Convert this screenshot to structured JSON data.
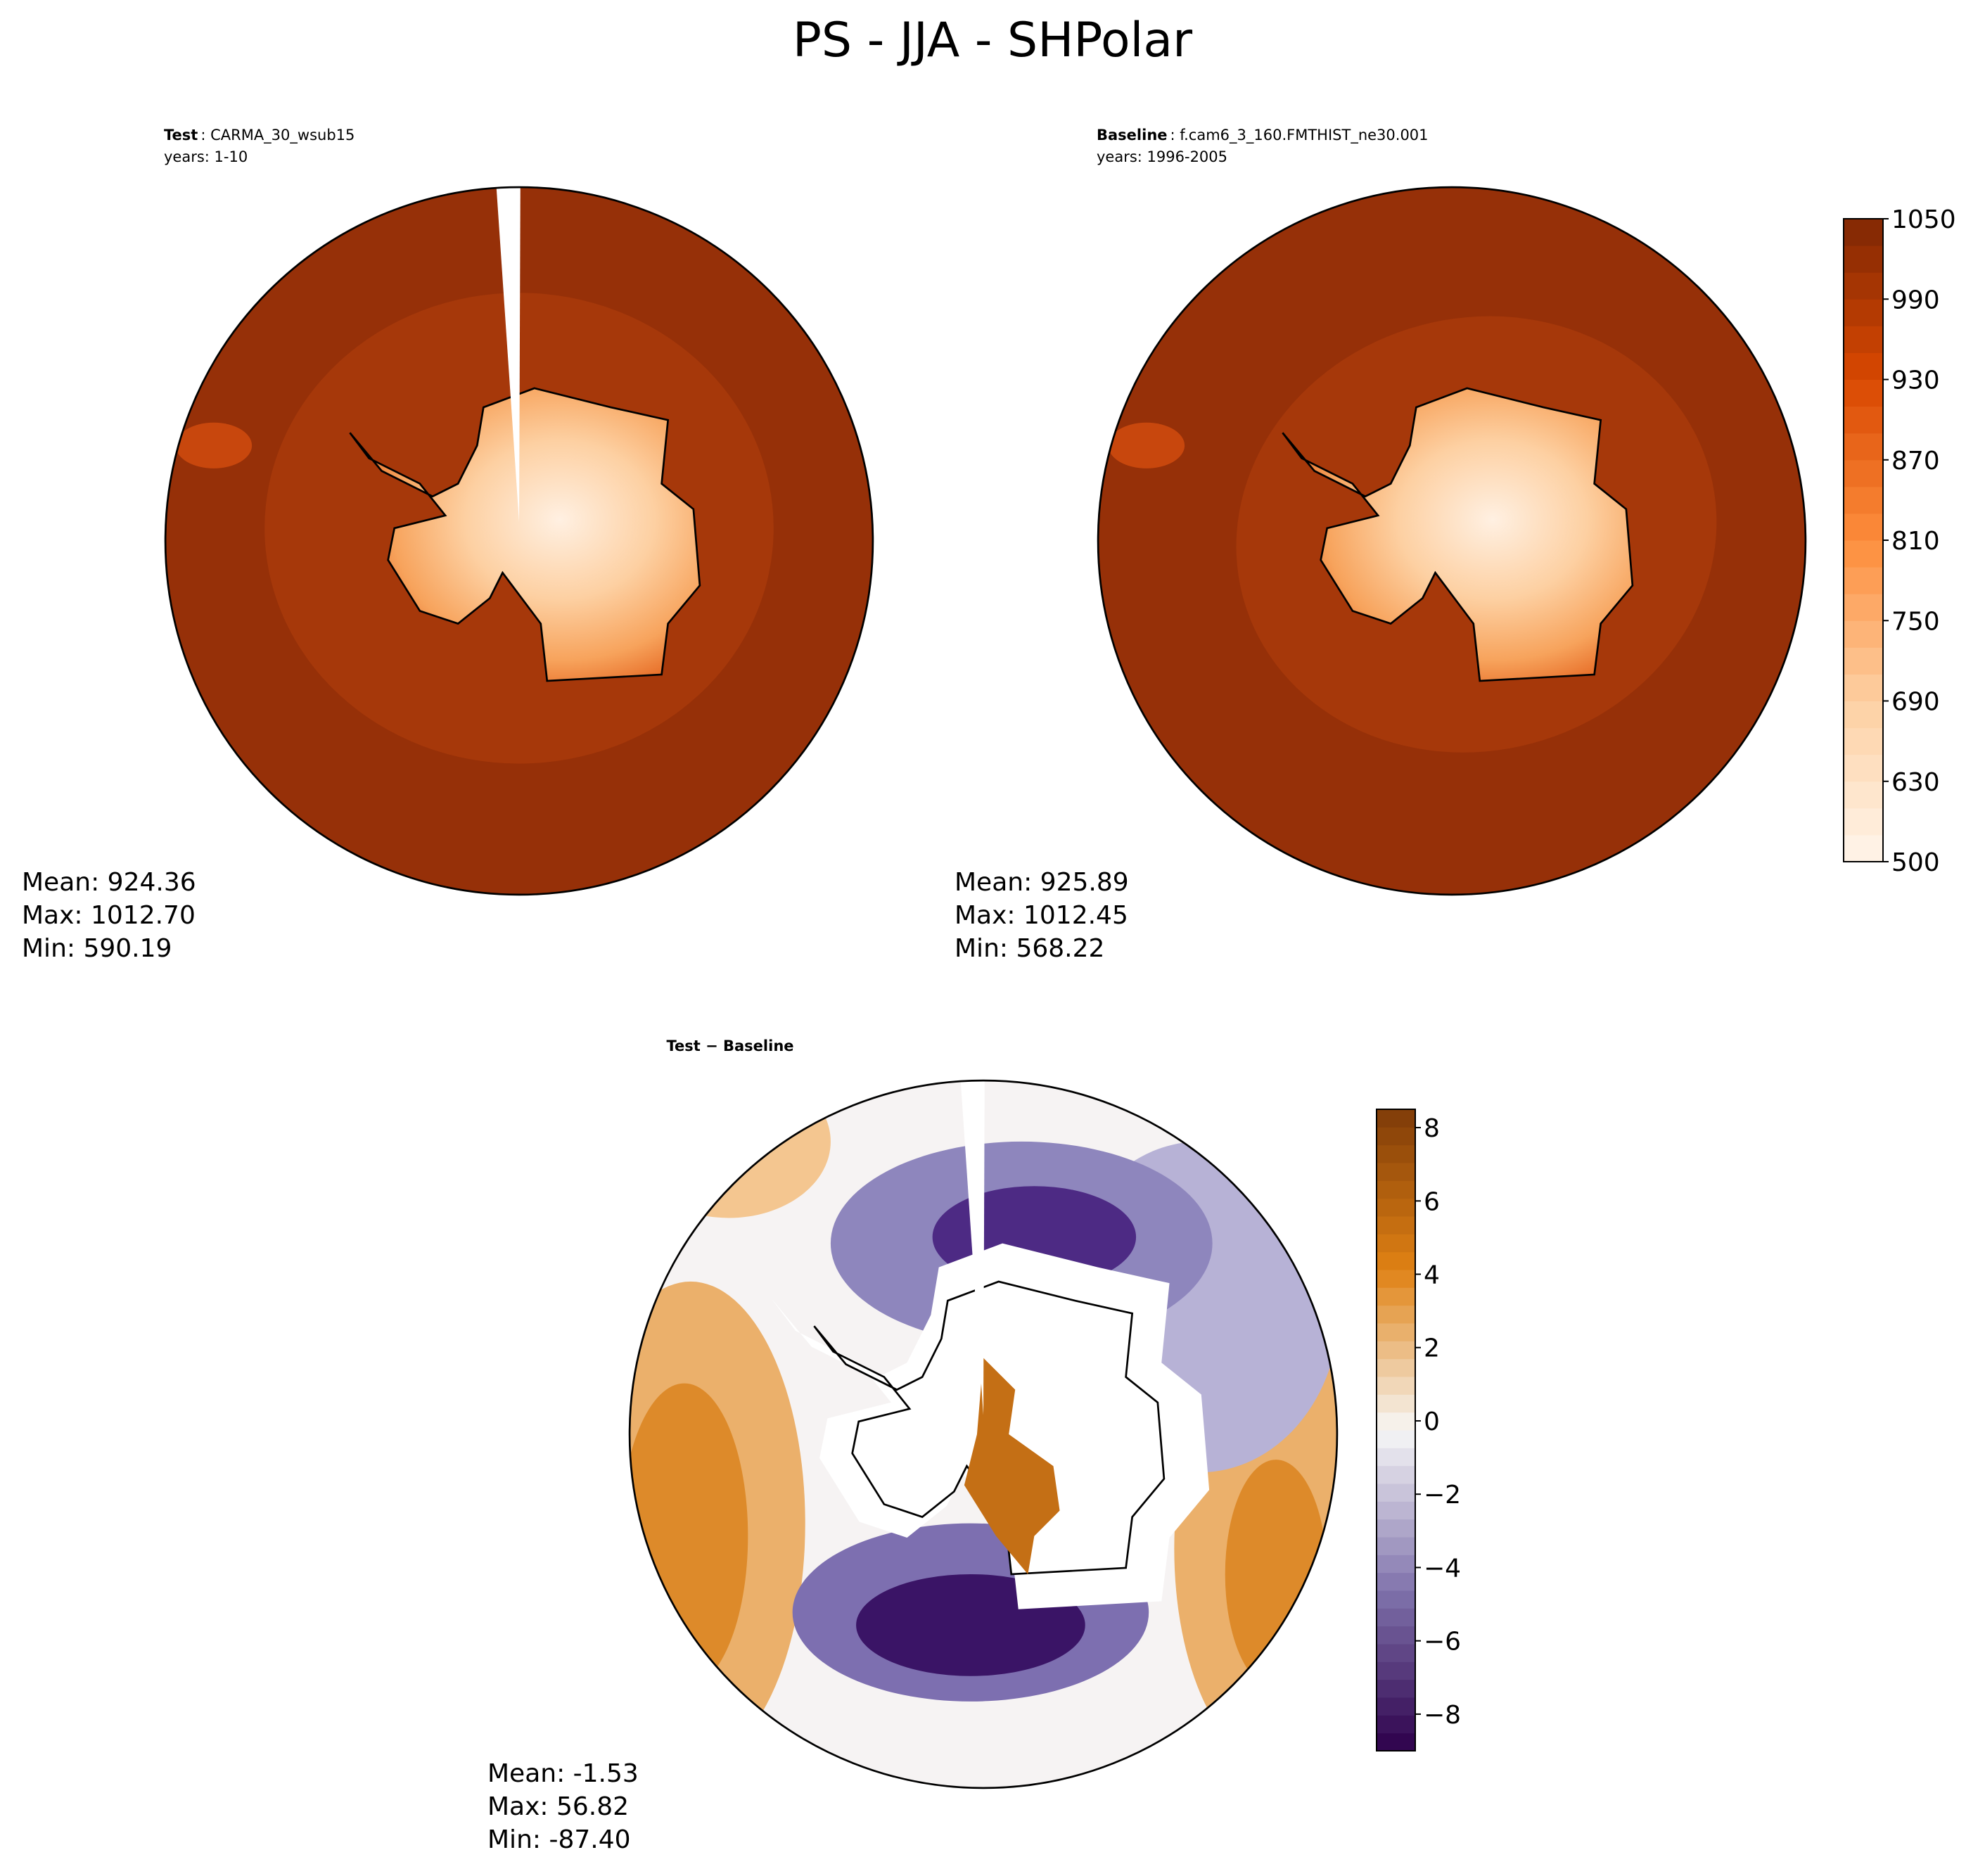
{
  "title": "PS - JJA - SHPolar",
  "panels": [
    {
      "label_bold": "Test",
      "label_rest": ": CARMA_30_wsub15",
      "years": "years: 1-10",
      "stats": [
        "Mean: 924.36",
        "Max: 1012.70",
        "Min: 590.19"
      ]
    },
    {
      "label_bold": "Baseline",
      "label_rest": ": f.cam6_3_160.FMTHIST_ne30.001",
      "years": "years: 1996-2005",
      "stats": [
        "Mean: 925.89",
        "Max: 1012.45",
        "Min: 568.22"
      ]
    },
    {
      "label_bold": "Test − Baseline",
      "stats": [
        "Mean: -1.53",
        "Max: 56.82",
        "Min: -87.40"
      ]
    }
  ],
  "colorbars": [
    {
      "levels": [
        500,
        550,
        600,
        630,
        650,
        670,
        690,
        710,
        730,
        750,
        770,
        790,
        810,
        830,
        850,
        870,
        890,
        910,
        930,
        950,
        970,
        990,
        1010,
        1030,
        1050
      ],
      "ticks": [
        500,
        630,
        690,
        750,
        810,
        870,
        930,
        990,
        1050
      ],
      "colors": [
        "#fff5eb",
        "#fdd0a2",
        "#fd8d3c",
        "#d94801",
        "#7f2704"
      ]
    },
    {
      "lim": [
        -9,
        8.5
      ],
      "ticks": [
        {
          "value": -8,
          "label": "−8"
        },
        {
          "value": -6,
          "label": "−6"
        },
        {
          "value": -4,
          "label": "−4"
        },
        {
          "value": -2,
          "label": "−2"
        },
        0,
        2,
        4,
        6,
        8
      ],
      "colors": [
        "#2d004b",
        "#8073ac",
        "#f7f7f7",
        "#e08214",
        "#7f3b08"
      ]
    }
  ]
}
